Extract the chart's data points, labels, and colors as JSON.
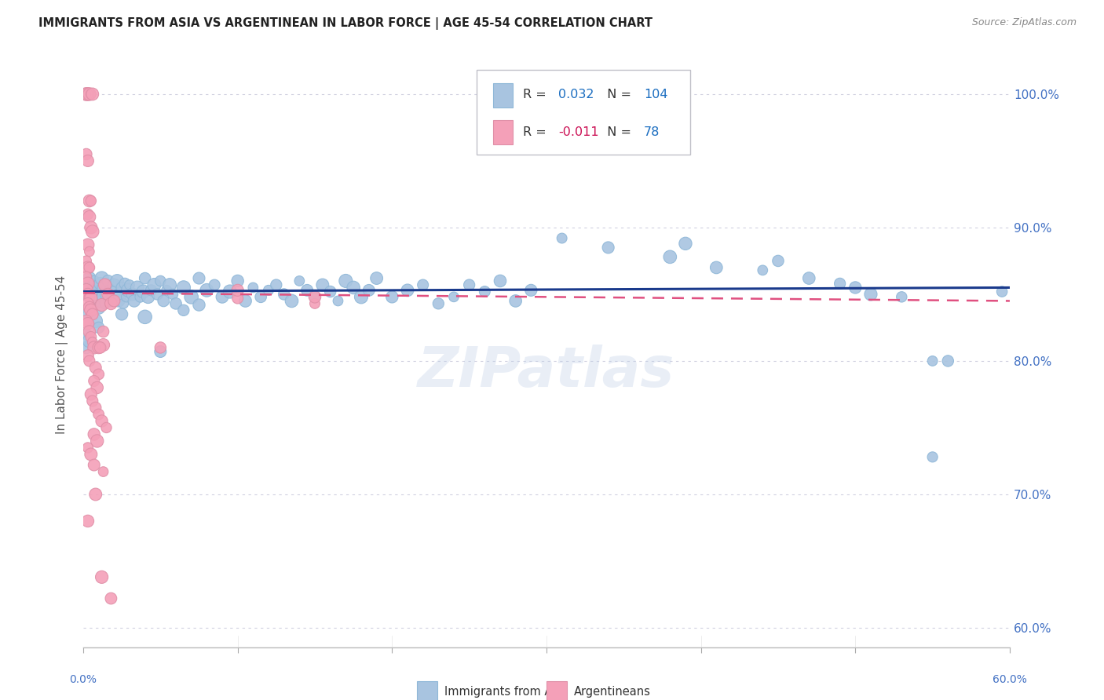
{
  "title": "IMMIGRANTS FROM ASIA VS ARGENTINEAN IN LABOR FORCE | AGE 45-54 CORRELATION CHART",
  "source": "Source: ZipAtlas.com",
  "ylabel": "In Labor Force | Age 45-54",
  "xlim": [
    0.0,
    0.6
  ],
  "ylim": [
    0.585,
    1.025
  ],
  "xticks": [
    0.0,
    0.6
  ],
  "xtick_labels": [
    "0.0%",
    "60.0%"
  ],
  "ytick_labels": [
    "60.0%",
    "70.0%",
    "80.0%",
    "90.0%",
    "100.0%"
  ],
  "yticks": [
    0.6,
    0.7,
    0.8,
    0.9,
    1.0
  ],
  "legend_blue_r": "0.032",
  "legend_blue_n": "104",
  "legend_pink_r": "-0.011",
  "legend_pink_n": "78",
  "blue_color": "#a8c4e0",
  "pink_color": "#f4a0b8",
  "line_blue": "#1a3a8c",
  "line_pink": "#e05080",
  "bg_color": "#ffffff",
  "grid_color": "#d0d0e0",
  "title_color": "#222222",
  "tick_color_right": "#4472c4",
  "legend_r_color_blue": "#1a6dc0",
  "legend_r_color_pink": "#cc1155",
  "watermark": "ZIPatlas",
  "blue_scatter": [
    [
      0.002,
      0.85
    ],
    [
      0.003,
      0.84
    ],
    [
      0.003,
      0.855
    ],
    [
      0.004,
      0.862
    ],
    [
      0.005,
      0.848
    ],
    [
      0.005,
      0.857
    ],
    [
      0.006,
      0.845
    ],
    [
      0.006,
      0.852
    ],
    [
      0.007,
      0.86
    ],
    [
      0.007,
      0.843
    ],
    [
      0.008,
      0.853
    ],
    [
      0.008,
      0.848
    ],
    [
      0.009,
      0.855
    ],
    [
      0.01,
      0.85
    ],
    [
      0.01,
      0.84
    ],
    [
      0.011,
      0.858
    ],
    [
      0.011,
      0.845
    ],
    [
      0.012,
      0.852
    ],
    [
      0.012,
      0.862
    ],
    [
      0.013,
      0.848
    ],
    [
      0.013,
      0.855
    ],
    [
      0.014,
      0.843
    ],
    [
      0.015,
      0.857
    ],
    [
      0.015,
      0.85
    ],
    [
      0.016,
      0.86
    ],
    [
      0.017,
      0.845
    ],
    [
      0.018,
      0.853
    ],
    [
      0.019,
      0.848
    ],
    [
      0.02,
      0.857
    ],
    [
      0.021,
      0.852
    ],
    [
      0.022,
      0.86
    ],
    [
      0.023,
      0.845
    ],
    [
      0.024,
      0.85
    ],
    [
      0.025,
      0.855
    ],
    [
      0.026,
      0.843
    ],
    [
      0.027,
      0.858
    ],
    [
      0.028,
      0.848
    ],
    [
      0.029,
      0.853
    ],
    [
      0.03,
      0.857
    ],
    [
      0.032,
      0.85
    ],
    [
      0.033,
      0.845
    ],
    [
      0.035,
      0.855
    ],
    [
      0.037,
      0.848
    ],
    [
      0.039,
      0.852
    ],
    [
      0.04,
      0.862
    ],
    [
      0.042,
      0.848
    ],
    [
      0.044,
      0.853
    ],
    [
      0.046,
      0.857
    ],
    [
      0.048,
      0.85
    ],
    [
      0.05,
      0.86
    ],
    [
      0.052,
      0.845
    ],
    [
      0.054,
      0.853
    ],
    [
      0.056,
      0.857
    ],
    [
      0.058,
      0.85
    ],
    [
      0.06,
      0.843
    ],
    [
      0.065,
      0.855
    ],
    [
      0.07,
      0.848
    ],
    [
      0.075,
      0.862
    ],
    [
      0.08,
      0.853
    ],
    [
      0.085,
      0.857
    ],
    [
      0.09,
      0.848
    ],
    [
      0.095,
      0.852
    ],
    [
      0.1,
      0.86
    ],
    [
      0.105,
      0.845
    ],
    [
      0.11,
      0.855
    ],
    [
      0.115,
      0.848
    ],
    [
      0.12,
      0.853
    ],
    [
      0.125,
      0.857
    ],
    [
      0.13,
      0.85
    ],
    [
      0.135,
      0.845
    ],
    [
      0.14,
      0.86
    ],
    [
      0.145,
      0.853
    ],
    [
      0.15,
      0.848
    ],
    [
      0.155,
      0.857
    ],
    [
      0.16,
      0.852
    ],
    [
      0.165,
      0.845
    ],
    [
      0.17,
      0.86
    ],
    [
      0.175,
      0.855
    ],
    [
      0.18,
      0.848
    ],
    [
      0.185,
      0.853
    ],
    [
      0.19,
      0.862
    ],
    [
      0.2,
      0.848
    ],
    [
      0.21,
      0.853
    ],
    [
      0.22,
      0.857
    ],
    [
      0.23,
      0.843
    ],
    [
      0.24,
      0.848
    ],
    [
      0.25,
      0.857
    ],
    [
      0.26,
      0.852
    ],
    [
      0.27,
      0.86
    ],
    [
      0.28,
      0.845
    ],
    [
      0.29,
      0.853
    ],
    [
      0.002,
      0.82
    ],
    [
      0.003,
      0.835
    ],
    [
      0.008,
      0.83
    ],
    [
      0.01,
      0.825
    ],
    [
      0.025,
      0.835
    ],
    [
      0.04,
      0.833
    ],
    [
      0.05,
      0.807
    ],
    [
      0.065,
      0.838
    ],
    [
      0.075,
      0.842
    ],
    [
      0.002,
      0.81
    ],
    [
      0.004,
      0.815
    ],
    [
      0.31,
      0.892
    ],
    [
      0.34,
      0.885
    ],
    [
      0.38,
      0.878
    ],
    [
      0.39,
      0.888
    ],
    [
      0.41,
      0.87
    ],
    [
      0.44,
      0.868
    ],
    [
      0.45,
      0.875
    ],
    [
      0.47,
      0.862
    ],
    [
      0.49,
      0.858
    ],
    [
      0.5,
      0.855
    ],
    [
      0.51,
      0.85
    ],
    [
      0.53,
      0.848
    ],
    [
      0.55,
      0.8
    ],
    [
      0.56,
      0.8
    ],
    [
      0.55,
      0.728
    ],
    [
      0.595,
      0.852
    ]
  ],
  "pink_scatter": [
    [
      0.001,
      1.0
    ],
    [
      0.002,
      1.0
    ],
    [
      0.003,
      1.0
    ],
    [
      0.004,
      1.0
    ],
    [
      0.005,
      1.0
    ],
    [
      0.006,
      1.0
    ],
    [
      0.002,
      0.955
    ],
    [
      0.003,
      0.95
    ],
    [
      0.004,
      0.92
    ],
    [
      0.005,
      0.92
    ],
    [
      0.003,
      0.91
    ],
    [
      0.004,
      0.908
    ],
    [
      0.005,
      0.9
    ],
    [
      0.006,
      0.897
    ],
    [
      0.003,
      0.887
    ],
    [
      0.004,
      0.882
    ],
    [
      0.002,
      0.875
    ],
    [
      0.003,
      0.87
    ],
    [
      0.004,
      0.87
    ],
    [
      0.002,
      0.863
    ],
    [
      0.003,
      0.858
    ],
    [
      0.002,
      0.853
    ],
    [
      0.003,
      0.85
    ],
    [
      0.004,
      0.848
    ],
    [
      0.005,
      0.847
    ],
    [
      0.003,
      0.843
    ],
    [
      0.004,
      0.84
    ],
    [
      0.005,
      0.838
    ],
    [
      0.006,
      0.835
    ],
    [
      0.002,
      0.83
    ],
    [
      0.003,
      0.828
    ],
    [
      0.004,
      0.822
    ],
    [
      0.005,
      0.818
    ],
    [
      0.006,
      0.814
    ],
    [
      0.007,
      0.81
    ],
    [
      0.003,
      0.804
    ],
    [
      0.004,
      0.8
    ],
    [
      0.008,
      0.795
    ],
    [
      0.01,
      0.79
    ],
    [
      0.007,
      0.785
    ],
    [
      0.009,
      0.78
    ],
    [
      0.005,
      0.775
    ],
    [
      0.006,
      0.77
    ],
    [
      0.008,
      0.765
    ],
    [
      0.01,
      0.76
    ],
    [
      0.012,
      0.755
    ],
    [
      0.015,
      0.75
    ],
    [
      0.007,
      0.745
    ],
    [
      0.009,
      0.74
    ],
    [
      0.003,
      0.735
    ],
    [
      0.005,
      0.73
    ],
    [
      0.013,
      0.822
    ],
    [
      0.013,
      0.812
    ],
    [
      0.012,
      0.842
    ],
    [
      0.014,
      0.857
    ],
    [
      0.016,
      0.85
    ],
    [
      0.018,
      0.843
    ],
    [
      0.01,
      0.81
    ],
    [
      0.011,
      0.81
    ],
    [
      0.02,
      0.845
    ],
    [
      0.007,
      0.722
    ],
    [
      0.013,
      0.717
    ],
    [
      0.008,
      0.7
    ],
    [
      0.003,
      0.68
    ],
    [
      0.012,
      0.638
    ],
    [
      0.018,
      0.622
    ],
    [
      0.05,
      0.81
    ],
    [
      0.1,
      0.847
    ],
    [
      0.1,
      0.853
    ],
    [
      0.15,
      0.843
    ],
    [
      0.15,
      0.848
    ]
  ]
}
